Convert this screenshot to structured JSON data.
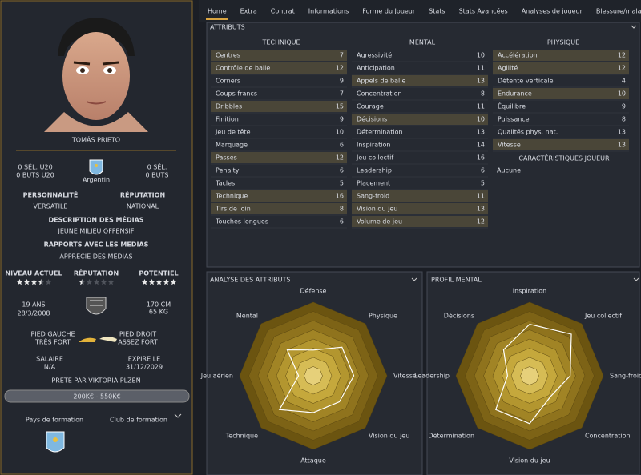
{
  "tabs": [
    "Home",
    "Extra",
    "Contrat",
    "Informations",
    "Forme du Joueur",
    "Stats",
    "Stats Avancées",
    "Analyses de joueur",
    "Blessure/maladie"
  ],
  "player": {
    "name": "TOMÁS PRIETO",
    "u20_caps": "0 SÉL. U20",
    "u20_goals": "0 BUTS U20",
    "nationality": "Argentin",
    "caps": "0 SÉL.",
    "goals": "0 BUTS",
    "personality": {
      "label": "PERSONNALITÉ",
      "value": "VERSATILE"
    },
    "reputation": {
      "label": "RÉPUTATION",
      "value": "NATIONAL"
    },
    "media_description": {
      "label": "DESCRIPTION DES MÉDIAS",
      "value": "JEUNE MILIEU OFFENSIF"
    },
    "media_relations": {
      "label": "RAPPORTS AVEC LES MÉDIAS",
      "value": "APPRÉCIÉ DES MÉDIAS"
    },
    "ratings": [
      {
        "label": "NIVEAU ACTUEL",
        "stars": 3.5
      },
      {
        "label": "RÉPUTATION",
        "stars": 0.5
      },
      {
        "label": "POTENTIEL",
        "stars": 5
      }
    ],
    "age": "19 ANS",
    "birth_date": "28/3/2008",
    "height": "170 CM",
    "weight": "65 KG",
    "left_foot": {
      "label": "PIED GAUCHE",
      "value": "TRÈS FORT"
    },
    "right_foot": {
      "label": "PIED DROIT",
      "value": "ASSEZ FORT"
    },
    "wage": {
      "label": "SALAIRE",
      "value": "N/A"
    },
    "expiry": {
      "label": "EXPIRE LE",
      "value": "31/12/2029"
    },
    "loan": "PRÊTÉ PAR VIKTORIA PLZEŇ",
    "value_range": "200K€ - 550K€",
    "training_country": "Pays de formation",
    "training_club": "Club de formation"
  },
  "attributes": {
    "title": "ATTRIBUTS",
    "groups": [
      {
        "name": "TECHNIQUE",
        "rows": [
          {
            "name": "Centres",
            "value": 7,
            "key": true
          },
          {
            "name": "Contrôle de balle",
            "value": 12,
            "key": true
          },
          {
            "name": "Corners",
            "value": 9,
            "key": false
          },
          {
            "name": "Coups francs",
            "value": 7,
            "key": false
          },
          {
            "name": "Dribbles",
            "value": 15,
            "key": true
          },
          {
            "name": "Finition",
            "value": 9,
            "key": false
          },
          {
            "name": "Jeu de tête",
            "value": 10,
            "key": false
          },
          {
            "name": "Marquage",
            "value": 6,
            "key": false
          },
          {
            "name": "Passes",
            "value": 12,
            "key": true
          },
          {
            "name": "Penalty",
            "value": 6,
            "key": false
          },
          {
            "name": "Tacles",
            "value": 5,
            "key": false
          },
          {
            "name": "Technique",
            "value": 16,
            "key": true
          },
          {
            "name": "Tirs de loin",
            "value": 8,
            "key": true
          },
          {
            "name": "Touches longues",
            "value": 6,
            "key": false
          }
        ]
      },
      {
        "name": "MENTAL",
        "rows": [
          {
            "name": "Agressivité",
            "value": 10,
            "key": false
          },
          {
            "name": "Anticipation",
            "value": 11,
            "key": false
          },
          {
            "name": "Appels de balle",
            "value": 13,
            "key": true
          },
          {
            "name": "Concentration",
            "value": 8,
            "key": false
          },
          {
            "name": "Courage",
            "value": 11,
            "key": false
          },
          {
            "name": "Décisions",
            "value": 10,
            "key": true
          },
          {
            "name": "Détermination",
            "value": 13,
            "key": false
          },
          {
            "name": "Inspiration",
            "value": 14,
            "key": false
          },
          {
            "name": "Jeu collectif",
            "value": 16,
            "key": false
          },
          {
            "name": "Leadership",
            "value": 6,
            "key": false
          },
          {
            "name": "Placement",
            "value": 5,
            "key": false
          },
          {
            "name": "Sang-froid",
            "value": 11,
            "key": true
          },
          {
            "name": "Vision du jeu",
            "value": 13,
            "key": true
          },
          {
            "name": "Volume de jeu",
            "value": 12,
            "key": true
          }
        ]
      },
      {
        "name": "PHYSIQUE",
        "rows": [
          {
            "name": "Accélération",
            "value": 12,
            "key": true
          },
          {
            "name": "Agilité",
            "value": 12,
            "key": true
          },
          {
            "name": "Détente verticale",
            "value": 4,
            "key": false
          },
          {
            "name": "Endurance",
            "value": 10,
            "key": true
          },
          {
            "name": "Équilibre",
            "value": 9,
            "key": false
          },
          {
            "name": "Puissance",
            "value": 8,
            "key": false
          },
          {
            "name": "Qualités phys. nat.",
            "value": 13,
            "key": false
          },
          {
            "name": "Vitesse",
            "value": 13,
            "key": true
          }
        ]
      }
    ],
    "traits_title": "CARACTÉRISTIQUES JOUEUR",
    "traits": "Aucune"
  },
  "radars": [
    {
      "title": "ANALYSE DES ATTRIBUTS",
      "rlim": [
        0,
        20
      ],
      "axes": [
        "Défense",
        "Physique",
        "Vitesse",
        "Vision du jeu",
        "Attaque",
        "Technique",
        "Jeu aérien",
        "Mental"
      ],
      "values": [
        7,
        11,
        11,
        10,
        10,
        13,
        4,
        10
      ]
    },
    {
      "title": "PROFIL MENTAL",
      "rlim": [
        0,
        20
      ],
      "axes": [
        "Inspiration",
        "Jeu collectif",
        "Sang-froid",
        "Concentration",
        "Vision du jeu",
        "Détermination",
        "Leadership",
        "Décisions"
      ],
      "values": [
        14,
        16,
        11,
        8,
        13,
        13,
        6,
        10
      ]
    }
  ]
}
